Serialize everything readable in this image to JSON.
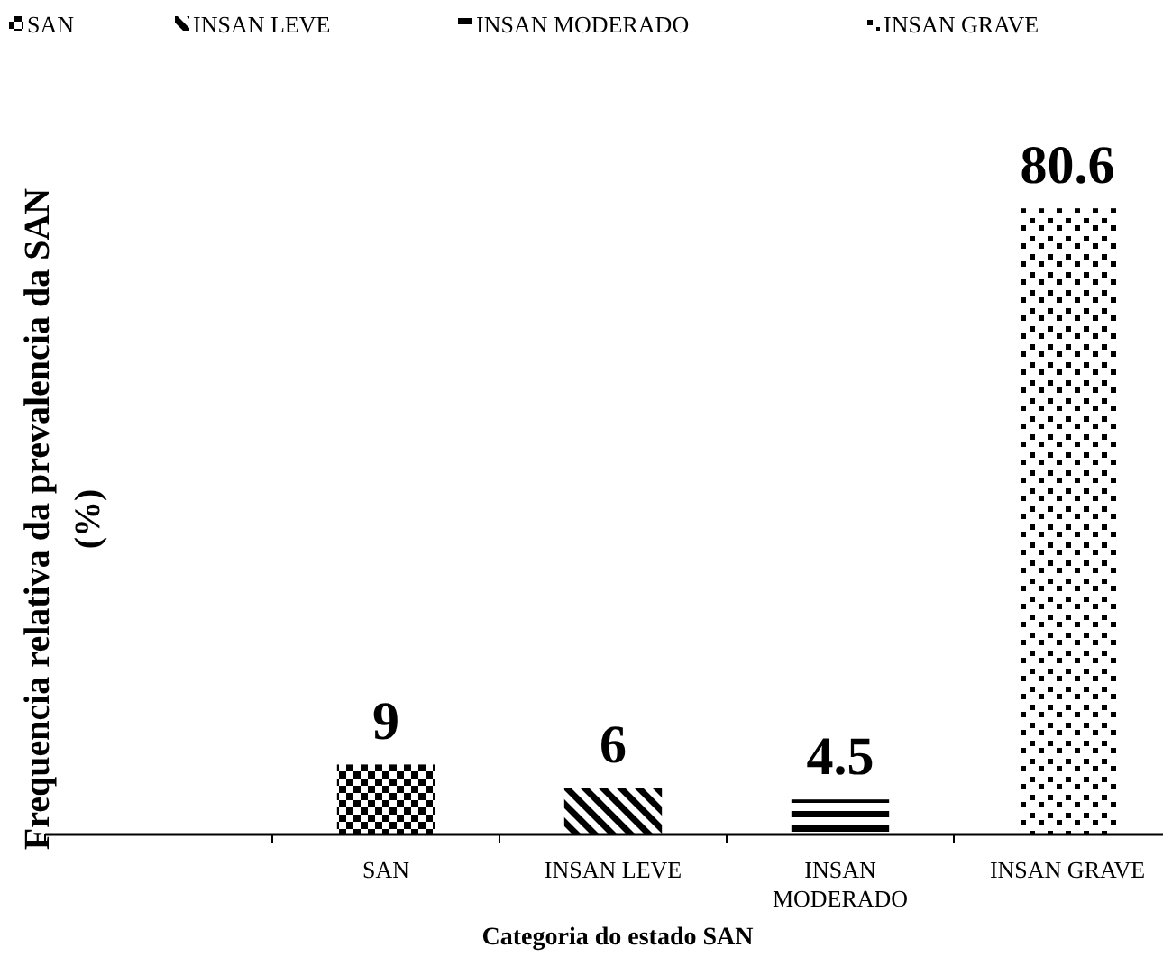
{
  "chart_data": {
    "type": "bar",
    "xlabel": "Categoria do estado SAN",
    "ylabel": "Frequencia relativa da prevalencia da SAN\n(%)",
    "categories": [
      null,
      "SAN",
      "INSAN LEVE",
      "INSAN MODERADO",
      "INSAN GRAVE"
    ],
    "series": [
      {
        "name": "SAN",
        "color": "#000000",
        "values": [
          null,
          9,
          null,
          null,
          null
        ]
      },
      {
        "name": "INSAN LEVE",
        "color": "#000000",
        "values": [
          null,
          null,
          6,
          null,
          null
        ]
      },
      {
        "name": "INSAN MODERADO",
        "color": "#000000",
        "values": [
          null,
          null,
          null,
          4.5,
          null
        ]
      },
      {
        "name": "INSAN GRAVE",
        "color": "#000000",
        "values": [
          null,
          null,
          null,
          null,
          80.6
        ]
      }
    ],
    "data_labels": true,
    "legend": "top"
  }
}
